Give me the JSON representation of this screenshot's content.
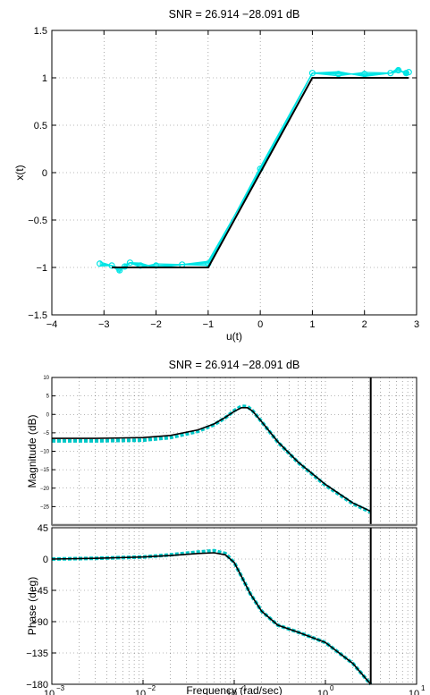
{
  "chart_data": [
    {
      "type": "line",
      "title": "SNR = 26.914 −28.091 dB",
      "xlabel": "u(t)",
      "ylabel": "x(t)",
      "xlim": [
        -4,
        3
      ],
      "ylim": [
        -1.5,
        1.5
      ],
      "grid": true,
      "xticks": [
        -4,
        -3,
        -2,
        -1,
        0,
        1,
        2,
        3
      ],
      "xtick_labels": [
        "−4",
        "−3",
        "−2",
        "−1",
        "0",
        "1",
        "2",
        "3"
      ],
      "yticks": [
        -1.5,
        -1,
        -0.5,
        0,
        0.5,
        1,
        1.5
      ],
      "ytick_labels": [
        "−1.5",
        "−1",
        "−0.5",
        "0",
        "0.5",
        "1",
        "1.5"
      ],
      "series": [
        {
          "color": "#00e5e5",
          "marker": "circle",
          "x": [
            -3.08,
            -2.85,
            -2.7,
            -2.6,
            -2.5,
            -2.3,
            -2.0,
            -1.5,
            -1.0,
            0.0,
            1.0,
            1.5,
            2.0,
            2.5,
            2.65,
            2.8,
            2.85
          ],
          "y": [
            -0.96,
            -0.98,
            -1.03,
            -0.99,
            -0.95,
            -0.98,
            -0.98,
            -0.97,
            -0.96,
            0.04,
            1.05,
            1.04,
            1.04,
            1.05,
            1.08,
            1.05,
            1.06
          ]
        },
        {
          "color": "#000000",
          "x": [
            -2.85,
            -1.0,
            1.0,
            2.85
          ],
          "y": [
            -1.0,
            -1.0,
            1.0,
            1.0
          ]
        }
      ]
    },
    {
      "type": "line",
      "title": "SNR = 26.914 −28.091 dB",
      "ylabel": "Magnitude (dB)",
      "xscale": "log",
      "xlim": [
        0.001,
        10
      ],
      "ylim": [
        -30,
        10
      ],
      "grid": true,
      "yticks": [
        -25,
        -20,
        -15,
        -10,
        -5,
        0,
        5,
        10
      ],
      "ytick_labels": [
        "−25",
        "−20",
        "−15",
        "−10",
        "−5",
        "0",
        "5",
        "10"
      ],
      "series": [
        {
          "color": "#00c8c8",
          "style": "dashed",
          "x": [
            0.001,
            0.003,
            0.01,
            0.02,
            0.04,
            0.06,
            0.08,
            0.1,
            0.12,
            0.14,
            0.16,
            0.2,
            0.3,
            0.5,
            1.0,
            2.0,
            3.14
          ],
          "y": [
            -7.2,
            -7.2,
            -7.0,
            -6.3,
            -4.6,
            -2.8,
            -0.9,
            1.0,
            2.2,
            2.1,
            0.9,
            -2.0,
            -7.5,
            -13.0,
            -19.2,
            -24.2,
            -26.5
          ]
        },
        {
          "color": "#000000",
          "x": [
            0.001,
            0.003,
            0.01,
            0.02,
            0.04,
            0.06,
            0.08,
            0.1,
            0.12,
            0.14,
            0.16,
            0.2,
            0.3,
            0.5,
            1.0,
            2.0,
            3.14
          ],
          "y": [
            -6.5,
            -6.5,
            -6.3,
            -5.7,
            -4.2,
            -2.6,
            -0.8,
            0.8,
            1.8,
            1.8,
            0.8,
            -2.0,
            -7.4,
            -12.9,
            -19.0,
            -24.0,
            -26.3
          ]
        }
      ],
      "vline_x": 3.14
    },
    {
      "type": "line",
      "xlabel": "Frequency  (rad/sec)",
      "ylabel": "Phase (deg)",
      "xscale": "log",
      "xlim": [
        0.001,
        10
      ],
      "ylim": [
        -180,
        45
      ],
      "grid": true,
      "xticks": [
        0.001,
        0.01,
        0.1,
        1,
        10
      ],
      "xtick_labels": [
        {
          "base": "10",
          "exp": "−3"
        },
        {
          "base": "10",
          "exp": "−2"
        },
        {
          "base": "10",
          "exp": "−1"
        },
        {
          "base": "10",
          "exp": "0"
        },
        {
          "base": "10",
          "exp": "1"
        }
      ],
      "yticks": [
        -180,
        -135,
        -90,
        -45,
        0,
        45
      ],
      "ytick_labels": [
        "−180",
        "−135",
        "−90",
        "−45",
        "0",
        "45"
      ],
      "series": [
        {
          "color": "#00c8c8",
          "style": "dashed",
          "x": [
            0.001,
            0.003,
            0.01,
            0.02,
            0.04,
            0.06,
            0.08,
            0.1,
            0.12,
            0.15,
            0.2,
            0.3,
            0.5,
            1.0,
            2.0,
            3.14
          ],
          "y": [
            0,
            1,
            3,
            6,
            10,
            12,
            8,
            -5,
            -25,
            -50,
            -75,
            -95,
            -105,
            -120,
            -150,
            -180
          ]
        },
        {
          "color": "#000000",
          "x": [
            0.001,
            0.003,
            0.01,
            0.02,
            0.04,
            0.06,
            0.08,
            0.1,
            0.12,
            0.15,
            0.2,
            0.3,
            0.5,
            1.0,
            2.0,
            3.14
          ],
          "y": [
            0,
            1,
            3,
            5,
            8,
            9,
            6,
            -5,
            -25,
            -50,
            -75,
            -95,
            -105,
            -120,
            -150,
            -180
          ]
        }
      ],
      "vline_x": 3.14
    }
  ]
}
